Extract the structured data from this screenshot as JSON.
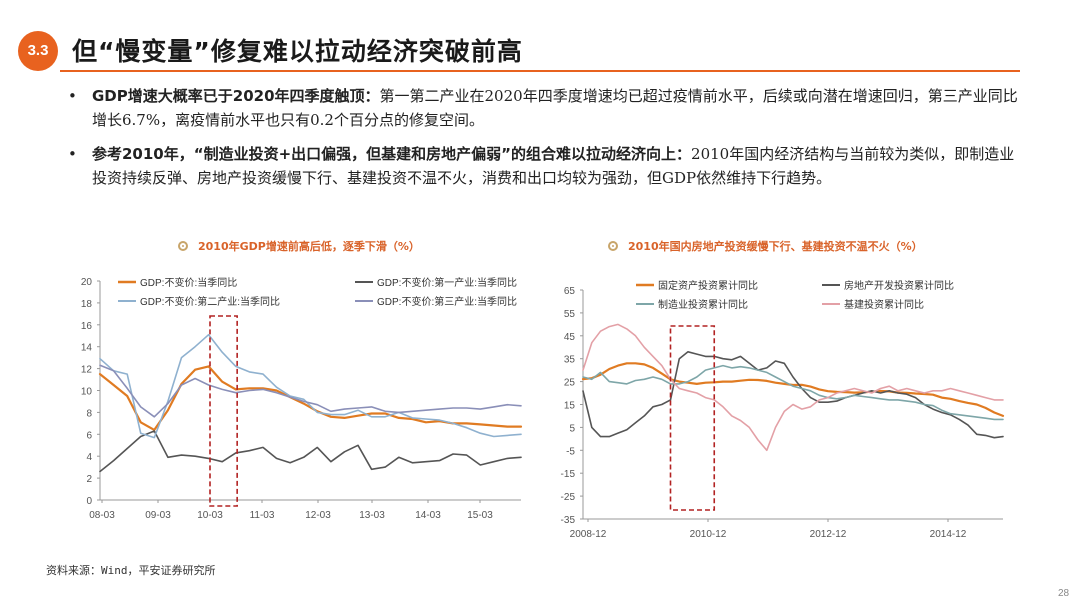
{
  "section_number": "3.3",
  "title": "但“慢变量”修复难以拉动经济突破前高",
  "bullets": [
    {
      "bold": "GDP增速大概率已于2020年四季度触顶：",
      "text": "第一第二产业在2020年四季度增速均已超过疫情前水平，后续或向潜在增速回归，第三产业同比增长6.7%，离疫情前水平也只有0.2个百分点的修复空间。"
    },
    {
      "bold": "参考2010年，“制造业投资+出口偏强，但基建和房地产偏弱”的组合难以拉动经济向上：",
      "text": "2010年国内经济结构与当前较为类似，即制造业投资持续反弹、房地产投资缓慢下行、基建投资不温不火，消费和出口均较为强劲，但GDP依然维持下行趋势。"
    }
  ],
  "source": "资料来源：Wind，平安证券研究所",
  "page_number": "28",
  "colors": {
    "accent": "#e8621f",
    "orange": "#e07b22",
    "dark_gray": "#555555",
    "light_blue": "#8fb1cf",
    "purple": "#8a8fb8",
    "teal": "#7ea6a8",
    "pink": "#e3a0a6",
    "box": "#b22222"
  },
  "chart_data": [
    {
      "type": "line",
      "title": "2010年GDP增速前高后低，逐季下滑（%）",
      "x_tick_labels": [
        "08-03",
        "09-03",
        "10-03",
        "11-03",
        "12-03",
        "13-03",
        "14-03",
        "15-03"
      ],
      "y_ticks": [
        0,
        2,
        4,
        6,
        8,
        10,
        12,
        14,
        16,
        18,
        20
      ],
      "ylim": [
        0,
        20
      ],
      "x_range": [
        0,
        31
      ],
      "highlight_x_range": [
        8.1,
        10.1
      ],
      "series": [
        {
          "name": "GDP:不变价:当季同比",
          "color": "#e07b22",
          "width": 2.2,
          "values": [
            11.5,
            10.5,
            9.5,
            7.1,
            6.4,
            8.2,
            10.6,
            11.9,
            12.2,
            10.8,
            10.1,
            10.2,
            10.2,
            10.0,
            9.4,
            8.8,
            8.1,
            7.6,
            7.5,
            7.7,
            7.9,
            7.9,
            7.5,
            7.4,
            7.1,
            7.2,
            7.0,
            7.0,
            6.9,
            6.8,
            6.7,
            6.7
          ]
        },
        {
          "name": "GDP:不变价:第一产业:当季同比",
          "color": "#555555",
          "width": 1.6,
          "values": [
            2.6,
            3.6,
            4.7,
            5.8,
            6.3,
            3.9,
            4.1,
            4.0,
            3.8,
            3.5,
            4.3,
            4.5,
            4.8,
            3.8,
            3.4,
            3.9,
            4.8,
            3.5,
            4.4,
            5.0,
            2.8,
            3.0,
            3.9,
            3.4,
            3.5,
            3.6,
            4.2,
            4.1,
            3.2,
            3.5,
            3.8,
            3.9
          ]
        },
        {
          "name": "GDP:不变价:第二产业:当季同比",
          "color": "#8fb1cf",
          "width": 1.6,
          "values": [
            12.9,
            11.8,
            11.5,
            6.1,
            5.7,
            9.0,
            13.0,
            14.0,
            15.1,
            13.5,
            12.2,
            11.7,
            11.5,
            10.3,
            9.5,
            9.2,
            8.0,
            7.8,
            7.8,
            8.2,
            7.6,
            7.6,
            8.0,
            7.5,
            7.4,
            7.3,
            7.0,
            6.6,
            6.1,
            5.8,
            5.9,
            6.0
          ]
        },
        {
          "name": "GDP:不变价:第三产业:当季同比",
          "color": "#8a8fb8",
          "width": 1.6,
          "values": [
            12.3,
            11.8,
            10.2,
            8.5,
            7.6,
            8.8,
            10.5,
            11.1,
            10.5,
            10.1,
            9.8,
            10.0,
            10.1,
            9.8,
            9.4,
            9.0,
            8.7,
            8.1,
            8.3,
            8.4,
            8.5,
            8.1,
            8.0,
            8.1,
            8.2,
            8.3,
            8.4,
            8.4,
            8.3,
            8.5,
            8.7,
            8.6
          ]
        }
      ]
    },
    {
      "type": "line",
      "title": "2010年国内房地产投资缓慢下行、基建投资不温不火（%）",
      "x_tick_labels": [
        "2008-12",
        "2010-12",
        "2012-12",
        "2014-12"
      ],
      "y_ticks": [
        65,
        55,
        45,
        35,
        25,
        15,
        5,
        -5,
        -15,
        -25,
        -35
      ],
      "ylim": [
        -35,
        65
      ],
      "x_range": [
        0,
        48
      ],
      "highlight_x_range": [
        10,
        15
      ],
      "series": [
        {
          "name": "固定资产投资累计同比",
          "color": "#e07b22",
          "width": 2.2,
          "values": [
            26.1,
            26.5,
            28.0,
            30.5,
            32.0,
            33.0,
            33.0,
            32.5,
            31.0,
            28.5,
            26.0,
            25.0,
            24.5,
            24.0,
            24.5,
            24.7,
            25.0,
            25.0,
            25.4,
            25.8,
            25.7,
            25.3,
            24.5,
            24.0,
            23.5,
            23.6,
            22.8,
            21.6,
            20.8,
            20.5,
            20.4,
            20.2,
            20.3,
            20.6,
            20.9,
            20.7,
            20.2,
            20.1,
            19.8,
            19.6,
            19.3,
            18.0,
            17.5,
            16.5,
            15.7,
            15.0,
            13.5,
            11.5,
            10.0
          ]
        },
        {
          "name": "房地产开发投资累计同比",
          "color": "#555555",
          "width": 1.6,
          "values": [
            20.9,
            5.0,
            1.0,
            1.0,
            2.5,
            4.0,
            7.0,
            10.0,
            14.0,
            15.0,
            17.0,
            35.0,
            38.0,
            37.0,
            36.0,
            36.0,
            35.0,
            34.5,
            36.0,
            33.0,
            30.0,
            31.0,
            34.0,
            33.0,
            27.0,
            22.0,
            18.0,
            16.0,
            16.0,
            16.5,
            18.0,
            19.0,
            20.0,
            21.0,
            20.0,
            21.0,
            20.0,
            19.5,
            18.0,
            15.0,
            13.0,
            11.5,
            10.5,
            8.5,
            6.0,
            2.0,
            1.5,
            0.5,
            1.0
          ]
        },
        {
          "name": "制造业投资累计同比",
          "color": "#7ea6a8",
          "width": 1.6,
          "values": [
            27.0,
            26.0,
            29.0,
            25.0,
            24.5,
            24.0,
            25.5,
            26.0,
            27.0,
            26.0,
            24.0,
            24.0,
            25.0,
            27.0,
            30.0,
            31.0,
            32.0,
            31.0,
            31.5,
            31.0,
            30.0,
            29.0,
            27.0,
            25.0,
            23.0,
            22.0,
            21.0,
            19.0,
            18.0,
            17.5,
            18.0,
            19.0,
            18.5,
            18.0,
            17.5,
            17.0,
            17.0,
            16.5,
            16.0,
            15.0,
            14.5,
            12.5,
            11.0,
            10.5,
            10.0,
            9.5,
            9.0,
            8.5,
            8.5
          ]
        },
        {
          "name": "基建投资累计同比",
          "color": "#e3a0a6",
          "width": 1.6,
          "values": [
            30.0,
            42.0,
            47.0,
            49.0,
            50.0,
            48.0,
            45.0,
            40.0,
            36.0,
            32.0,
            26.0,
            22.0,
            21.0,
            20.0,
            18.0,
            17.0,
            14.0,
            10.0,
            8.0,
            5.0,
            -0.5,
            -5.0,
            5.0,
            12.0,
            15.0,
            13.0,
            14.0,
            17.0,
            18.0,
            20.0,
            21.0,
            22.0,
            21.0,
            20.0,
            22.0,
            23.0,
            21.0,
            22.0,
            21.0,
            20.0,
            21.0,
            21.0,
            22.0,
            21.0,
            20.0,
            19.0,
            18.0,
            17.0,
            17.0
          ]
        }
      ]
    }
  ]
}
